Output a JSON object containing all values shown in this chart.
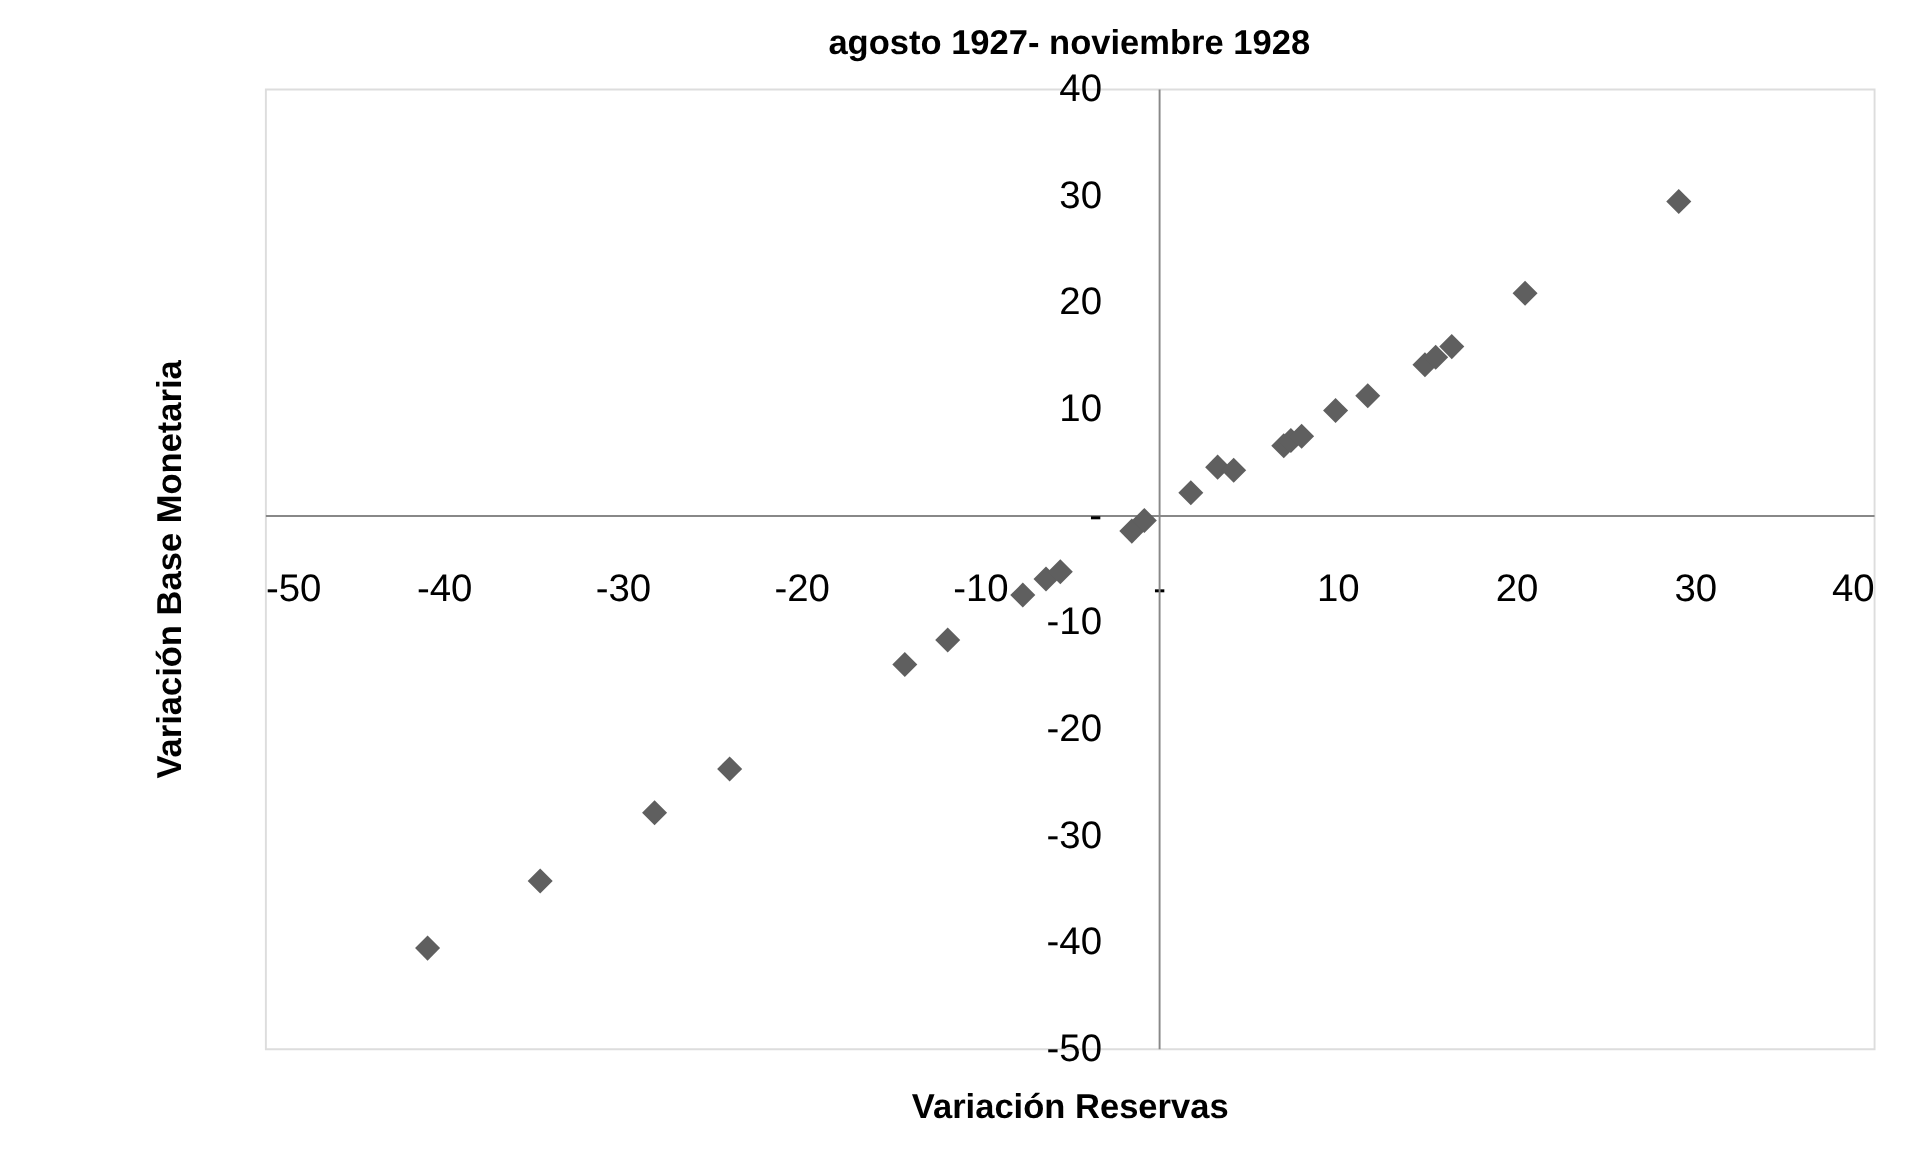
{
  "chart_data": {
    "type": "scatter",
    "title": "agosto 1927- noviembre 1928",
    "xlabel": "Variación Reservas",
    "ylabel": "Variación Base Monetaria",
    "x": [
      -40.9,
      -34.6,
      -28.2,
      -24.0,
      -14.2,
      -11.8,
      -7.6,
      -6.3,
      -5.5,
      -1.5,
      -0.8,
      1.8,
      3.3,
      4.2,
      7.0,
      7.4,
      8.0,
      9.9,
      11.7,
      14.9,
      15.5,
      16.4,
      20.5,
      29.1
    ],
    "values": [
      -40.6,
      -34.3,
      -27.9,
      -23.8,
      -14.0,
      -11.7,
      -7.5,
      -6.0,
      -5.3,
      -1.5,
      -0.5,
      2.1,
      4.5,
      4.2,
      6.5,
      7.0,
      7.4,
      9.8,
      11.2,
      14.1,
      14.8,
      15.8,
      20.8,
      29.4
    ],
    "color": "#5f5f5f",
    "marker": "diamond",
    "grid": false,
    "legend": false,
    "xlim": [
      -50,
      40
    ],
    "ylim": [
      -50,
      40
    ],
    "xticks": [
      -50,
      -40,
      -30,
      -20,
      -10,
      {
        "value": 0,
        "label": "-"
      },
      10,
      20,
      30,
      40
    ],
    "yticks": [
      -50,
      -40,
      -30,
      -20,
      -10,
      {
        "value": 0,
        "label": "-"
      },
      10,
      20,
      30,
      40
    ]
  }
}
